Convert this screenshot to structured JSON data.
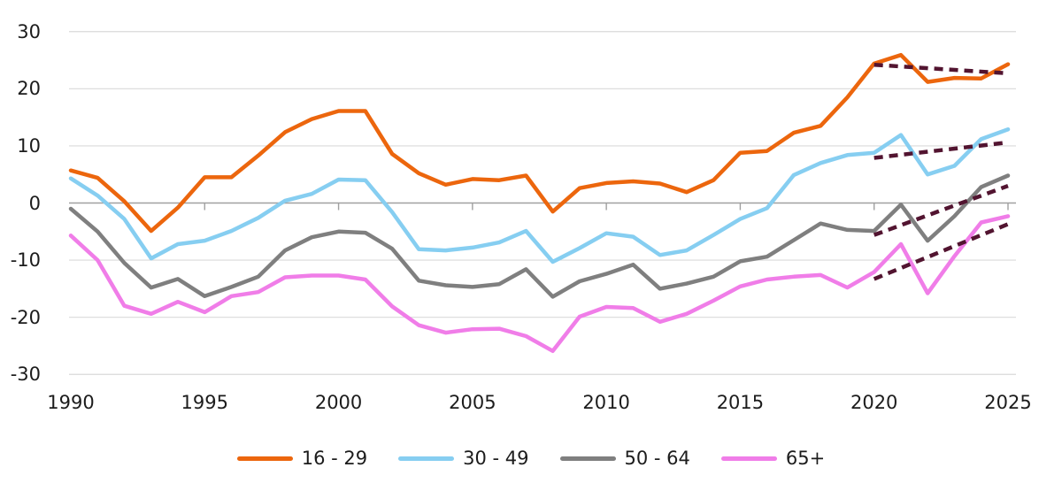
{
  "chart": {
    "background": "#ffffff",
    "text_color": "#1c1c1c",
    "grid_color": "#dadada",
    "zero_axis_color": "#a0a0a0",
    "trend_line_color": "#521430"
  },
  "chart_data": {
    "type": "line",
    "title": "",
    "xlabel": "",
    "ylabel": "",
    "xlim": [
      1990,
      2025
    ],
    "ylim": [
      -30,
      30
    ],
    "grid": "horizontal",
    "legend_position": "bottom",
    "x": [
      1990,
      1991,
      1992,
      1993,
      1994,
      1995,
      1996,
      1997,
      1998,
      1999,
      2000,
      2001,
      2002,
      2003,
      2004,
      2005,
      2006,
      2007,
      2008,
      2009,
      2010,
      2011,
      2012,
      2013,
      2014,
      2015,
      2016,
      2017,
      2018,
      2019,
      2020,
      2021,
      2022,
      2023,
      2024,
      2025
    ],
    "x_tick_labels": [
      1990,
      1995,
      2000,
      2005,
      2010,
      2015,
      2020,
      2025
    ],
    "x_tick_marks": [
      1995,
      2000,
      2005,
      2010,
      2015,
      2020,
      2025
    ],
    "y_ticks": [
      30,
      20,
      10,
      0,
      -10,
      -20,
      -30
    ],
    "series": [
      {
        "name": "16 - 29",
        "color": "#ec660d",
        "values": [
          5.7,
          4.4,
          0.3,
          -4.9,
          -0.8,
          4.5,
          4.5,
          8.3,
          12.4,
          14.7,
          16.1,
          16.1,
          8.6,
          5.2,
          3.2,
          4.2,
          4.0,
          4.8,
          -1.5,
          2.6,
          3.5,
          3.8,
          3.4,
          1.9,
          4.0,
          8.8,
          9.1,
          12.3,
          13.5,
          18.5,
          24.4,
          25.9,
          21.2,
          21.9,
          21.8,
          24.3
        ]
      },
      {
        "name": "30 - 49",
        "color": "#86cef1",
        "values": [
          4.3,
          1.3,
          -2.8,
          -9.7,
          -7.2,
          -6.6,
          -4.9,
          -2.6,
          0.4,
          1.6,
          4.1,
          4.0,
          -1.6,
          -8.1,
          -8.3,
          -7.8,
          -6.9,
          -4.9,
          -10.3,
          -7.9,
          -5.3,
          -5.9,
          -9.1,
          -8.3,
          -5.6,
          -2.8,
          -0.9,
          4.9,
          7.0,
          8.4,
          8.8,
          11.9,
          5.0,
          6.5,
          11.2,
          12.9
        ]
      },
      {
        "name": "50 - 64",
        "color": "#7f7f7f",
        "values": [
          -1.0,
          -5.0,
          -10.5,
          -14.8,
          -13.3,
          -16.3,
          -14.7,
          -12.9,
          -8.3,
          -6.0,
          -5.0,
          -5.2,
          -8.0,
          -13.6,
          -14.4,
          -14.7,
          -14.2,
          -11.6,
          -16.4,
          -13.7,
          -12.4,
          -10.8,
          -15.0,
          -14.1,
          -12.9,
          -10.2,
          -9.4,
          -6.5,
          -3.6,
          -4.7,
          -4.9,
          -0.3,
          -6.6,
          -2.3,
          2.8,
          4.8
        ]
      },
      {
        "name": "65+",
        "color": "#f07de8",
        "values": [
          -5.7,
          -10.0,
          -18.0,
          -19.4,
          -17.3,
          -19.1,
          -16.3,
          -15.6,
          -13.0,
          -12.7,
          -12.7,
          -13.4,
          -18.1,
          -21.4,
          -22.7,
          -22.1,
          -22.0,
          -23.3,
          -25.9,
          -19.9,
          -18.2,
          -18.4,
          -20.8,
          -19.4,
          -17.1,
          -14.6,
          -13.4,
          -12.9,
          -12.6,
          -14.8,
          -12.1,
          -7.2,
          -15.8,
          -9.3,
          -3.4,
          -2.3
        ]
      }
    ],
    "trend_lines": [
      {
        "series": "16 - 29",
        "style": "dashed",
        "color": "#521430",
        "x_start": 2020,
        "y_start": 24.2,
        "x_end": 2025,
        "y_end": 22.7
      },
      {
        "series": "30 - 49",
        "style": "dashed",
        "color": "#521430",
        "x_start": 2020,
        "y_start": 7.9,
        "x_end": 2025,
        "y_end": 10.6
      },
      {
        "series": "50 - 64",
        "style": "dashed",
        "color": "#521430",
        "x_start": 2020,
        "y_start": -5.6,
        "x_end": 2025,
        "y_end": 3.0
      },
      {
        "series": "65+",
        "style": "dashed",
        "color": "#521430",
        "x_start": 2020,
        "y_start": -13.3,
        "x_end": 2025,
        "y_end": -3.7
      }
    ]
  },
  "legend": {
    "items": [
      {
        "label": "16 - 29",
        "color": "#ec660d"
      },
      {
        "label": "30 - 49",
        "color": "#86cef1"
      },
      {
        "label": "50 - 64",
        "color": "#7f7f7f"
      },
      {
        "label": "65+",
        "color": "#f07de8"
      }
    ]
  }
}
